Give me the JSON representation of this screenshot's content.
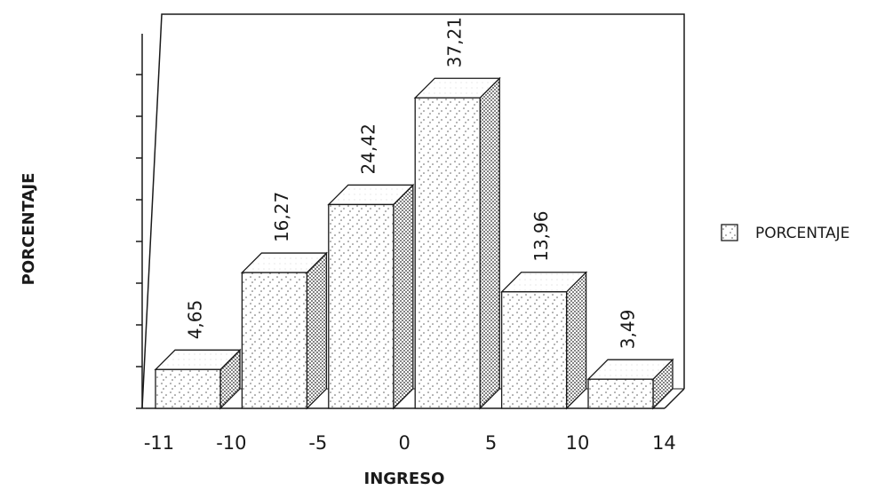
{
  "chart_data": {
    "type": "bar",
    "title": "",
    "xlabel": "INGRESO",
    "ylabel": "PORCENTAJE",
    "x_tick_labels": [
      "-11",
      "-10",
      "-5",
      "0",
      "5",
      "10",
      "14"
    ],
    "categories": [
      "-11 a -10",
      "-10 a -5",
      "-5 a 0",
      "0 a 5",
      "5 a 10",
      "10 a 14"
    ],
    "series": [
      {
        "name": "PORCENTAJE",
        "values": [
          4.65,
          16.27,
          24.42,
          37.21,
          13.96,
          3.49
        ]
      }
    ],
    "data_labels": [
      "4,65",
      "16,27",
      "24,42",
      "37,21",
      "13,96",
      "3,49"
    ],
    "ylim": [
      0,
      40
    ],
    "grid": false,
    "style": "3d",
    "legend_position": "right"
  },
  "legend": {
    "label": "PORCENTAJE"
  },
  "colors": {
    "ink": "#1a1a1a",
    "bar_face": "#ffffff",
    "bar_side_dots": "#2b2b2b"
  }
}
